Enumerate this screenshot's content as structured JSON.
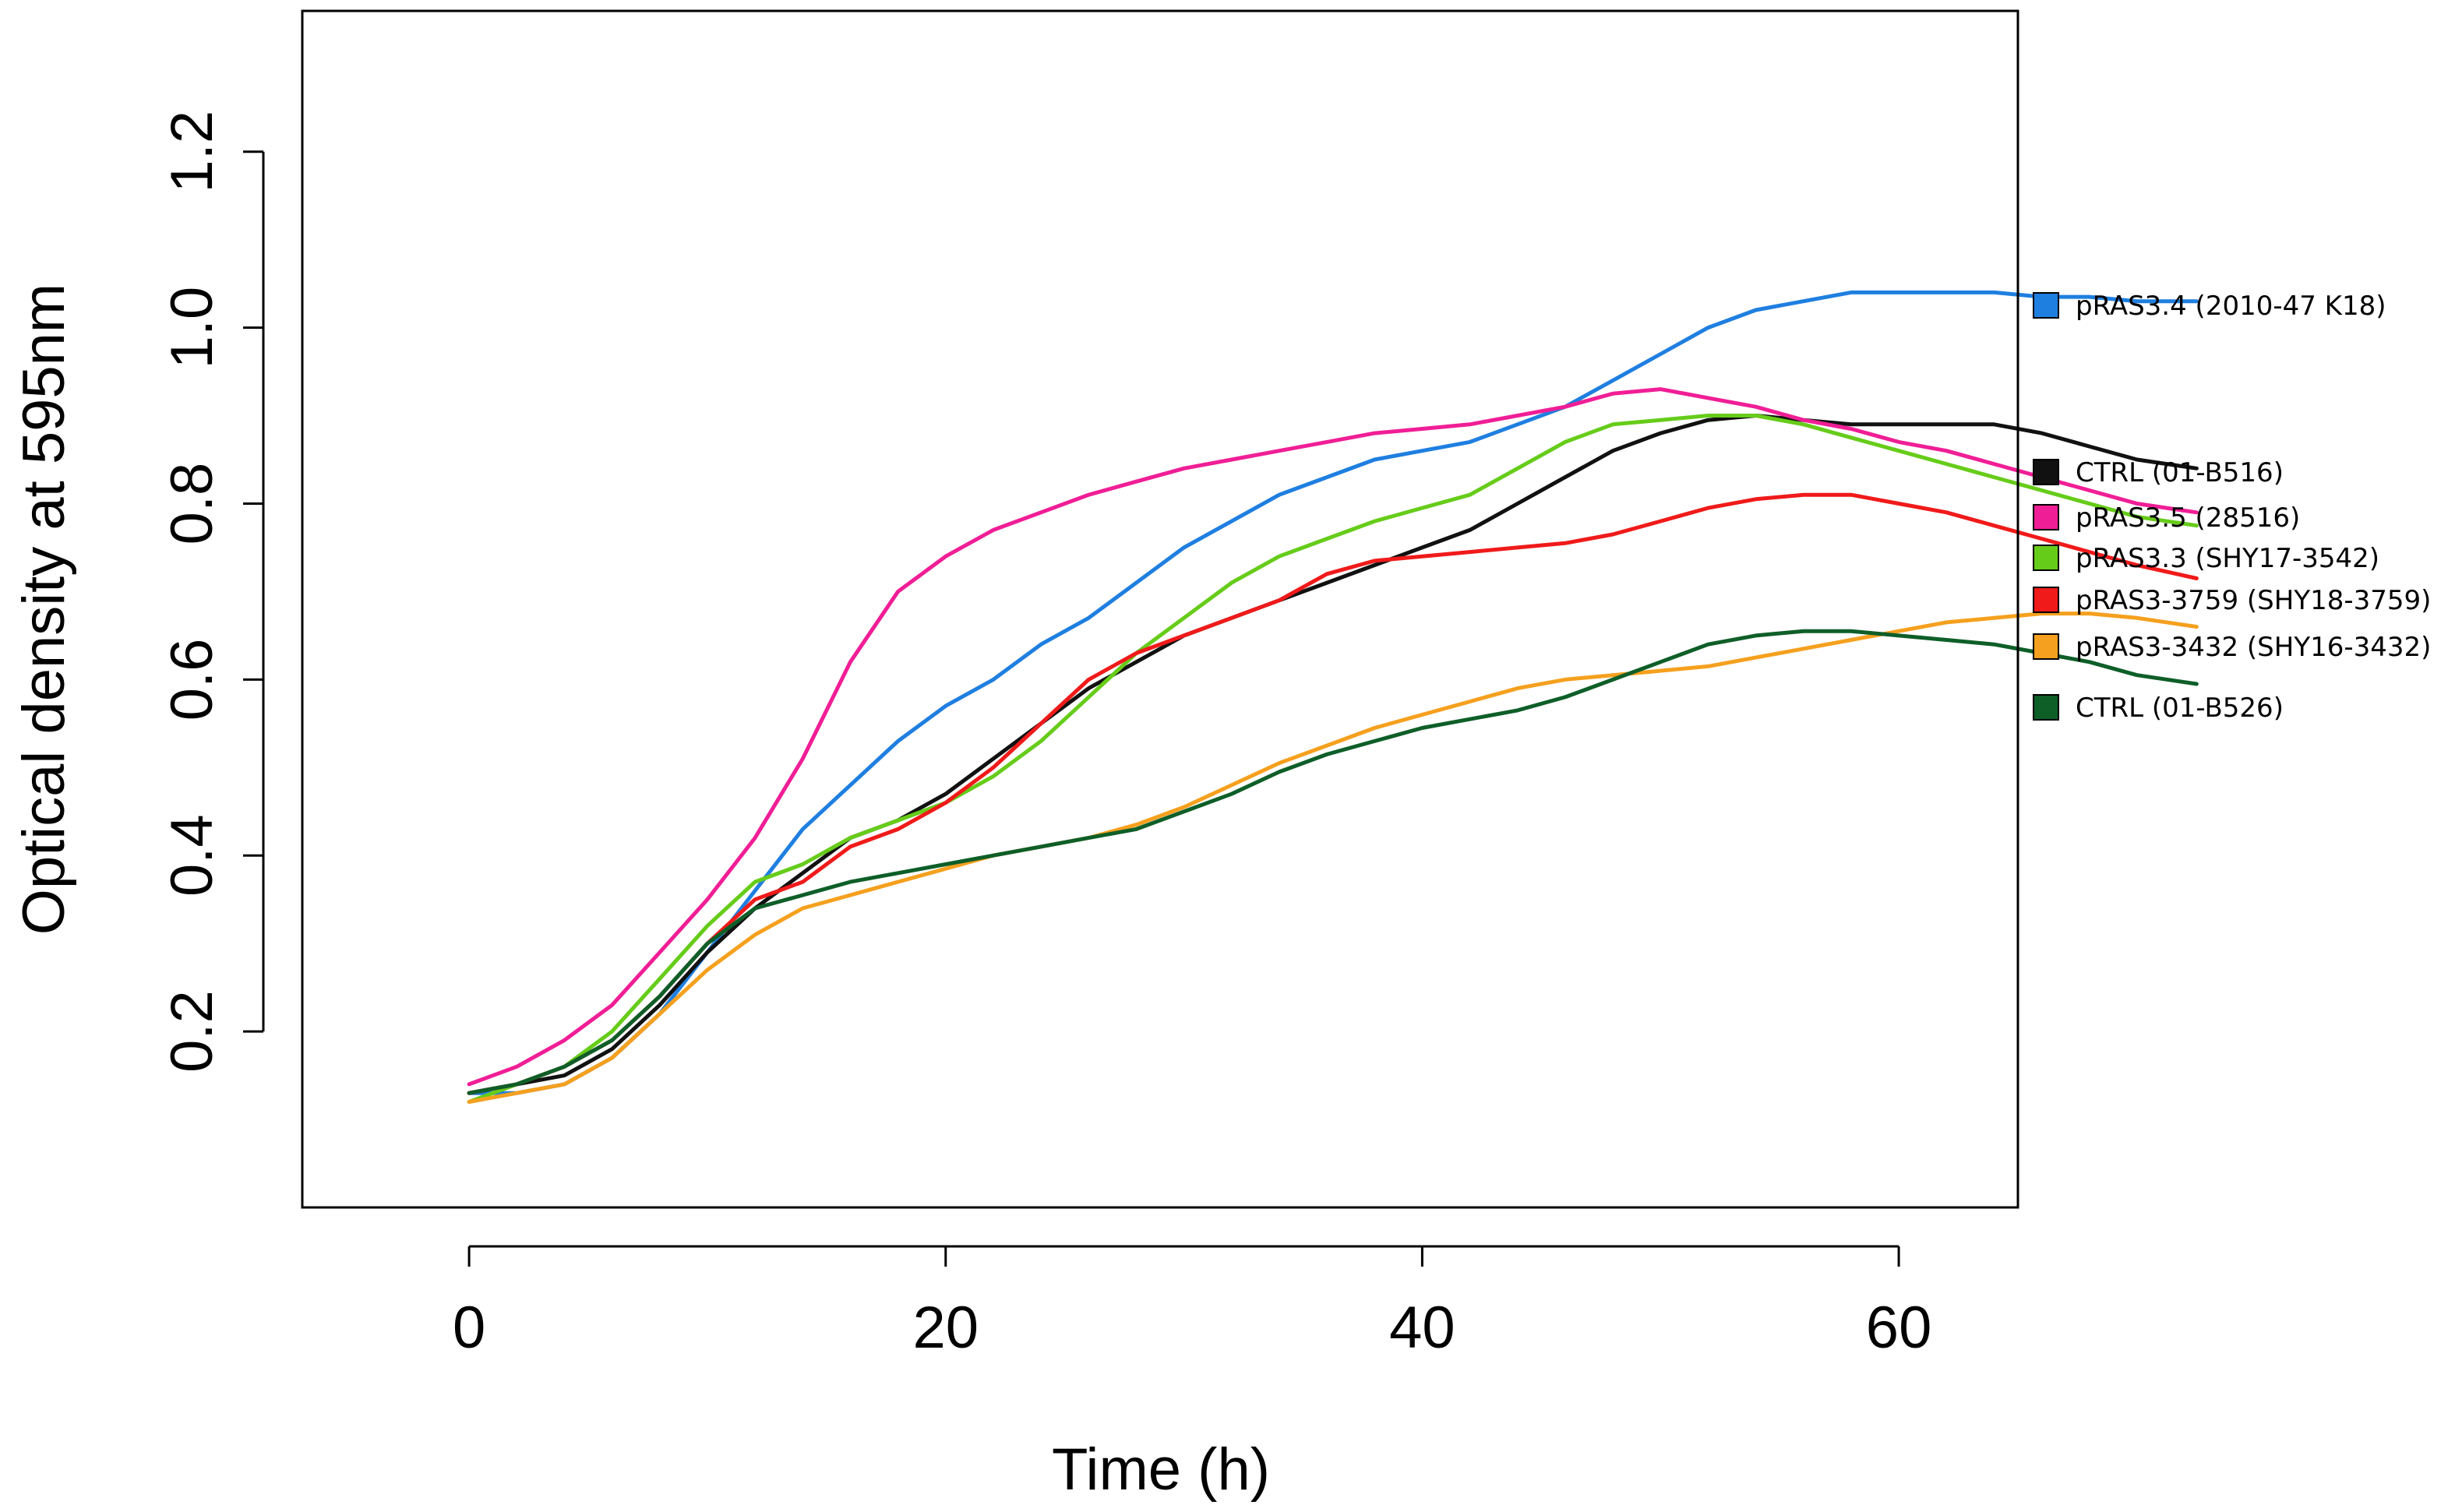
{
  "chart_data": {
    "type": "line",
    "title": "",
    "xlabel": "Time (h)",
    "ylabel": "Optical density at 595nm",
    "xlim": [
      -7,
      65
    ],
    "ylim": [
      0.0,
      1.36
    ],
    "xticks": [
      0,
      20,
      40,
      60
    ],
    "xtick_labels": [
      "0",
      "20",
      "40",
      "60"
    ],
    "yticks": [
      0.2,
      0.4,
      0.6,
      0.8,
      1.0,
      1.2
    ],
    "ytick_labels": [
      "0.2",
      "0.4",
      "0.6",
      "0.8",
      "1.0",
      "1.2"
    ],
    "grid": false,
    "legend_position": "right",
    "series": [
      {
        "name": "pRAS3.4 (2010-47 K18)",
        "color": "#1f7fe0",
        "x": [
          0,
          2,
          4,
          6,
          8,
          10,
          12,
          14,
          16,
          18,
          20,
          22,
          24,
          26,
          28,
          30,
          32,
          34,
          36,
          38,
          40,
          42,
          44,
          46,
          48,
          50,
          52,
          54,
          56,
          58,
          60,
          62,
          64,
          66,
          68,
          70,
          72.5
        ],
        "y": [
          0.13,
          0.13,
          0.14,
          0.17,
          0.22,
          0.29,
          0.36,
          0.43,
          0.48,
          0.53,
          0.57,
          0.6,
          0.64,
          0.67,
          0.71,
          0.75,
          0.78,
          0.81,
          0.83,
          0.85,
          0.86,
          0.87,
          0.89,
          0.91,
          0.94,
          0.97,
          1.0,
          1.02,
          1.03,
          1.04,
          1.04,
          1.04,
          1.04,
          1.035,
          1.035,
          1.03,
          1.03
        ]
      },
      {
        "name": "CTRL (01-B516)",
        "color": "#111111",
        "x": [
          0,
          2,
          4,
          6,
          8,
          10,
          12,
          14,
          16,
          18,
          20,
          22,
          24,
          26,
          28,
          30,
          32,
          34,
          36,
          38,
          40,
          42,
          44,
          46,
          48,
          50,
          52,
          54,
          56,
          58,
          60,
          62,
          64,
          66,
          68,
          70,
          72.5
        ],
        "y": [
          0.13,
          0.14,
          0.15,
          0.18,
          0.23,
          0.29,
          0.34,
          0.38,
          0.42,
          0.44,
          0.47,
          0.51,
          0.55,
          0.59,
          0.62,
          0.65,
          0.67,
          0.69,
          0.71,
          0.73,
          0.75,
          0.77,
          0.8,
          0.83,
          0.86,
          0.88,
          0.895,
          0.9,
          0.895,
          0.89,
          0.89,
          0.89,
          0.89,
          0.88,
          0.865,
          0.85,
          0.84
        ]
      },
      {
        "name": "pRAS3.5 (28516)",
        "color": "#f01e96",
        "x": [
          0,
          2,
          4,
          6,
          8,
          10,
          12,
          14,
          16,
          18,
          20,
          22,
          24,
          26,
          28,
          30,
          32,
          34,
          36,
          38,
          40,
          42,
          44,
          46,
          48,
          50,
          52,
          54,
          56,
          58,
          60,
          62,
          64,
          66,
          68,
          70,
          72.5
        ],
        "y": [
          0.14,
          0.16,
          0.19,
          0.23,
          0.29,
          0.35,
          0.42,
          0.51,
          0.62,
          0.7,
          0.74,
          0.77,
          0.79,
          0.81,
          0.825,
          0.84,
          0.85,
          0.86,
          0.87,
          0.88,
          0.885,
          0.89,
          0.9,
          0.91,
          0.925,
          0.93,
          0.92,
          0.91,
          0.895,
          0.885,
          0.87,
          0.86,
          0.845,
          0.83,
          0.815,
          0.8,
          0.79
        ]
      },
      {
        "name": "pRAS3.3 (SHY17-3542)",
        "color": "#66cc1a",
        "x": [
          0,
          2,
          4,
          6,
          8,
          10,
          12,
          14,
          16,
          18,
          20,
          22,
          24,
          26,
          28,
          30,
          32,
          34,
          36,
          38,
          40,
          42,
          44,
          46,
          48,
          50,
          52,
          54,
          56,
          58,
          60,
          62,
          64,
          66,
          68,
          70,
          72.5
        ],
        "y": [
          0.12,
          0.14,
          0.16,
          0.2,
          0.26,
          0.32,
          0.37,
          0.39,
          0.42,
          0.44,
          0.46,
          0.49,
          0.53,
          0.58,
          0.63,
          0.67,
          0.71,
          0.74,
          0.76,
          0.78,
          0.795,
          0.81,
          0.84,
          0.87,
          0.89,
          0.895,
          0.9,
          0.9,
          0.89,
          0.875,
          0.86,
          0.845,
          0.83,
          0.815,
          0.8,
          0.785,
          0.775
        ]
      },
      {
        "name": "pRAS3-3759 (SHY18-3759)",
        "color": "#f01a1a",
        "x": [
          0,
          2,
          4,
          6,
          8,
          10,
          12,
          14,
          16,
          18,
          20,
          22,
          24,
          26,
          28,
          30,
          32,
          34,
          36,
          38,
          40,
          42,
          44,
          46,
          48,
          50,
          52,
          54,
          56,
          58,
          60,
          62,
          64,
          66,
          68,
          70,
          72.5
        ],
        "y": [
          0.13,
          0.14,
          0.16,
          0.19,
          0.24,
          0.3,
          0.35,
          0.37,
          0.41,
          0.43,
          0.46,
          0.5,
          0.55,
          0.6,
          0.63,
          0.65,
          0.67,
          0.69,
          0.72,
          0.735,
          0.74,
          0.745,
          0.75,
          0.755,
          0.765,
          0.78,
          0.795,
          0.805,
          0.81,
          0.81,
          0.8,
          0.79,
          0.775,
          0.76,
          0.745,
          0.73,
          0.715
        ]
      },
      {
        "name": "pRAS3-3432 (SHY16-3432)",
        "color": "#f5a01e",
        "x": [
          0,
          2,
          4,
          6,
          8,
          10,
          12,
          14,
          16,
          18,
          20,
          22,
          24,
          26,
          28,
          30,
          32,
          34,
          36,
          38,
          40,
          42,
          44,
          46,
          48,
          50,
          52,
          54,
          56,
          58,
          60,
          62,
          64,
          66,
          68,
          70,
          72.5
        ],
        "y": [
          0.12,
          0.13,
          0.14,
          0.17,
          0.22,
          0.27,
          0.31,
          0.34,
          0.355,
          0.37,
          0.385,
          0.4,
          0.41,
          0.42,
          0.435,
          0.455,
          0.48,
          0.505,
          0.525,
          0.545,
          0.56,
          0.575,
          0.59,
          0.6,
          0.605,
          0.61,
          0.615,
          0.625,
          0.635,
          0.645,
          0.655,
          0.665,
          0.67,
          0.675,
          0.675,
          0.67,
          0.66
        ]
      },
      {
        "name": "CTRL (01-B526)",
        "color": "#0e5e28",
        "x": [
          0,
          2,
          4,
          6,
          8,
          10,
          12,
          14,
          16,
          18,
          20,
          22,
          24,
          26,
          28,
          30,
          32,
          34,
          36,
          38,
          40,
          42,
          44,
          46,
          48,
          50,
          52,
          54,
          56,
          58,
          60,
          62,
          64,
          66,
          68,
          70,
          72.5
        ],
        "y": [
          0.13,
          0.14,
          0.16,
          0.19,
          0.24,
          0.3,
          0.34,
          0.355,
          0.37,
          0.38,
          0.39,
          0.4,
          0.41,
          0.42,
          0.43,
          0.45,
          0.47,
          0.495,
          0.515,
          0.53,
          0.545,
          0.555,
          0.565,
          0.58,
          0.6,
          0.62,
          0.64,
          0.65,
          0.655,
          0.655,
          0.65,
          0.645,
          0.64,
          0.63,
          0.62,
          0.605,
          0.595
        ]
      }
    ]
  }
}
